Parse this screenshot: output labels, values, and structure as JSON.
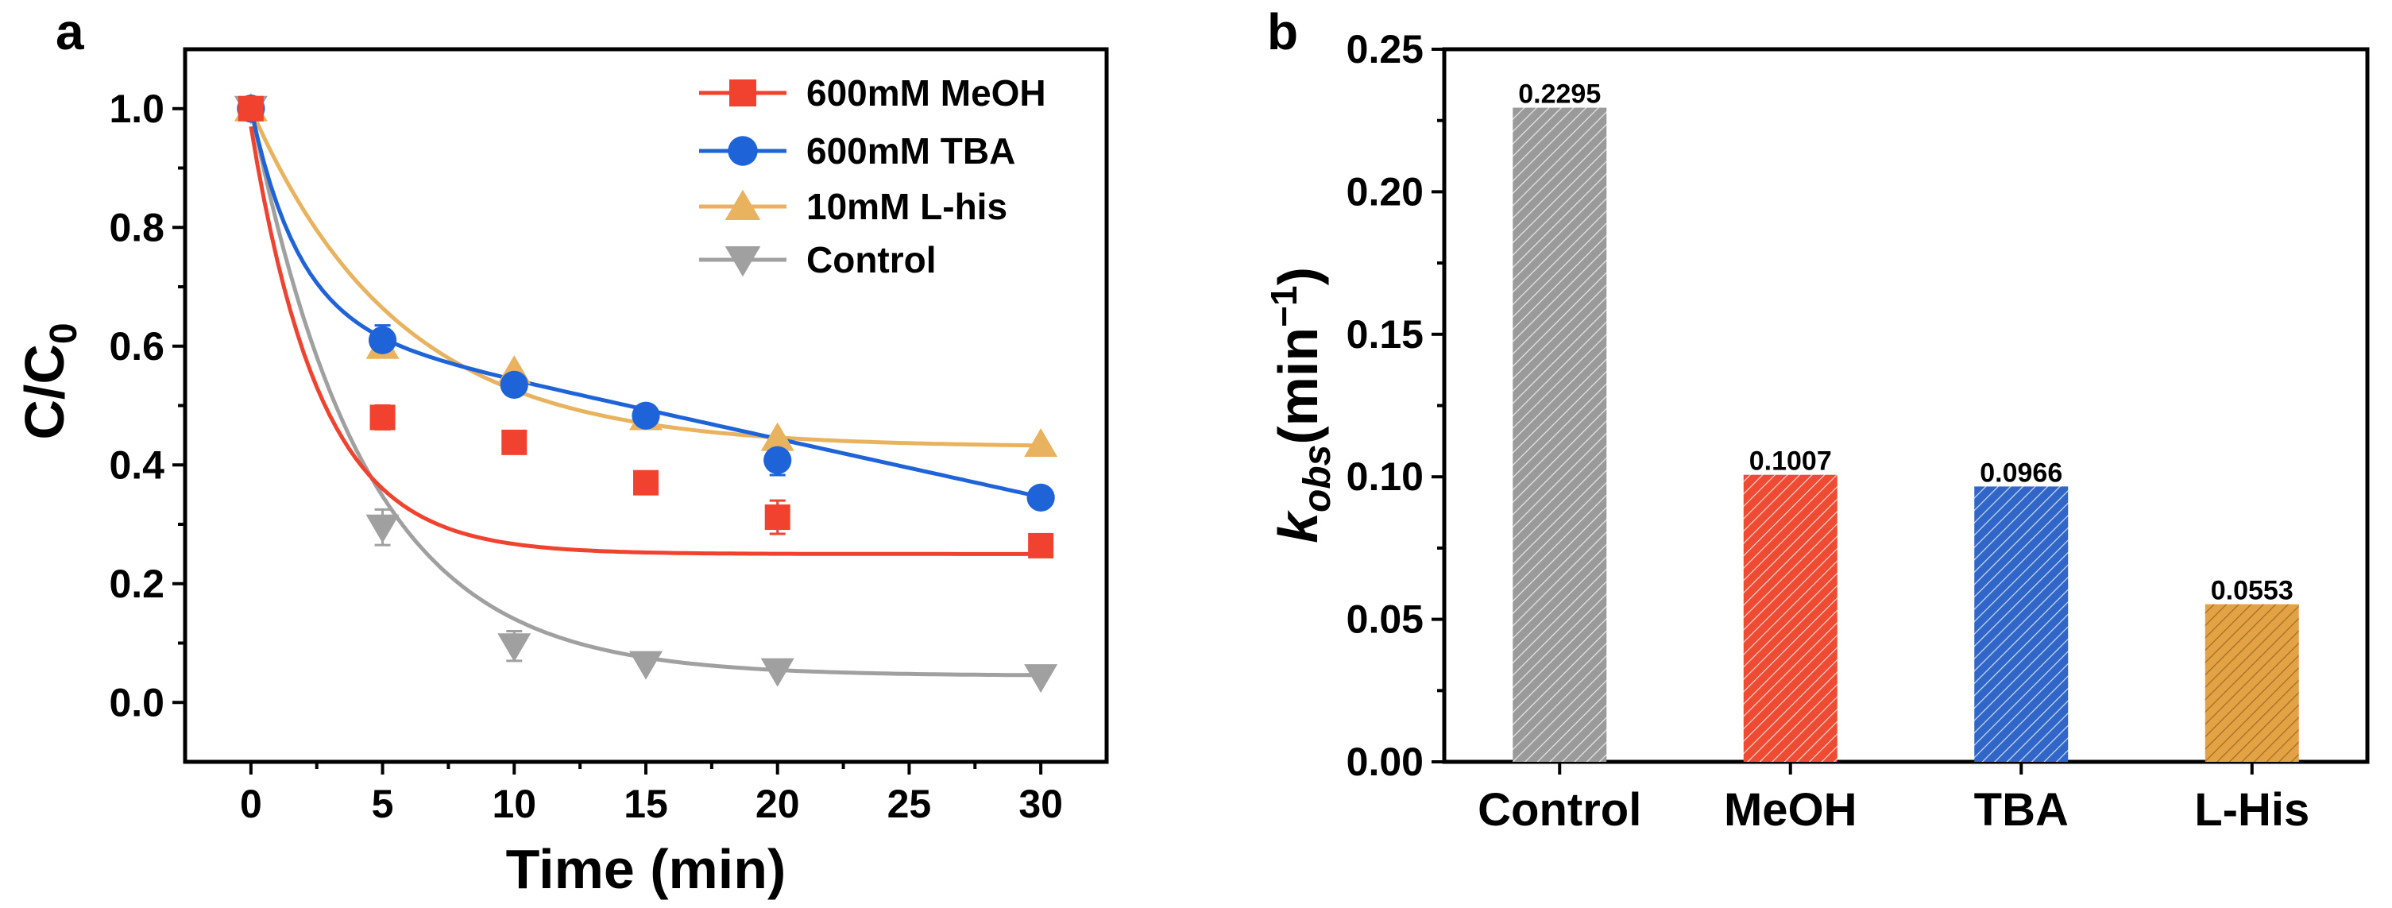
{
  "chart_data": [
    {
      "panel": "a",
      "type": "line",
      "xlabel": "Time (min)",
      "ylabel_main": "C/C",
      "ylabel_sub": "0",
      "xlim": [
        -2.5,
        32.5
      ],
      "ylim": [
        -0.1,
        1.1
      ],
      "xticks": [
        0,
        5,
        10,
        15,
        20,
        25,
        30
      ],
      "xtick_labels": [
        "0",
        "5",
        "10",
        "15",
        "20",
        "25",
        "30"
      ],
      "yticks": [
        0.0,
        0.2,
        0.4,
        0.6,
        0.8,
        1.0
      ],
      "ytick_labels": [
        "0.0",
        "0.2",
        "0.4",
        "0.6",
        "0.8",
        "1.0"
      ],
      "x": [
        0,
        5,
        10,
        15,
        20,
        30
      ],
      "series": [
        {
          "name": "600mM MeOH",
          "color": "#f0422e",
          "marker": "square",
          "values": [
            1.0,
            0.48,
            0.438,
            0.37,
            0.312,
            0.264
          ],
          "errors": [
            0.01,
            0.02,
            0.012,
            0.012,
            0.028,
            0.01
          ],
          "fit": {
            "a": 0.72,
            "k": 0.376,
            "b": 0.25
          }
        },
        {
          "name": "600mM TBA",
          "color": "#1f63d8",
          "marker": "circle",
          "values": [
            1.0,
            0.61,
            0.535,
            0.483,
            0.408,
            0.345
          ],
          "errors": [
            0.01,
            0.025,
            0.01,
            0.015,
            0.025,
            0.01
          ],
          "fit": {
            "a": 0.34,
            "k": 0.58,
            "b": 0.66,
            "c": -0.0105
          }
        },
        {
          "name": "10mM L-his",
          "color": "#e9b25e",
          "marker": "triangle-up",
          "values": [
            1.0,
            0.6,
            0.558,
            0.48,
            0.445,
            0.435
          ],
          "errors": [
            0.01,
            0.01,
            0.01,
            0.01,
            0.01,
            0.01
          ],
          "fit": {
            "a": 0.57,
            "k": 0.178,
            "b": 0.43
          }
        },
        {
          "name": "Control",
          "color": "#a0a0a0",
          "marker": "triangle-down",
          "values": [
            1.0,
            0.295,
            0.095,
            0.065,
            0.053,
            0.043
          ],
          "errors": [
            0.01,
            0.03,
            0.025,
            0.012,
            0.01,
            0.008
          ],
          "fit": {
            "a": 0.955,
            "k": 0.23,
            "b": 0.045
          }
        }
      ]
    },
    {
      "panel": "b",
      "type": "bar",
      "ylabel_main": "k",
      "ylabel_sub": "obs",
      "ylabel_unit": "(min",
      "ylabel_sup": "−1",
      "ylabel_close": ")",
      "ylim": [
        0,
        0.25
      ],
      "yticks": [
        0.0,
        0.05,
        0.1,
        0.15,
        0.2,
        0.25
      ],
      "ytick_labels": [
        "0.00",
        "0.05",
        "0.10",
        "0.15",
        "0.20",
        "0.25"
      ],
      "categories": [
        "Control",
        "MeOH",
        "TBA",
        "L-His"
      ],
      "values": [
        0.2295,
        0.1007,
        0.0966,
        0.0553
      ],
      "value_labels": [
        "0.2295",
        "0.1007",
        "0.0966",
        "0.0553"
      ],
      "colors": [
        "#9a9a9a",
        "#ef4a32",
        "#3066c8",
        "#e3a344"
      ]
    }
  ]
}
